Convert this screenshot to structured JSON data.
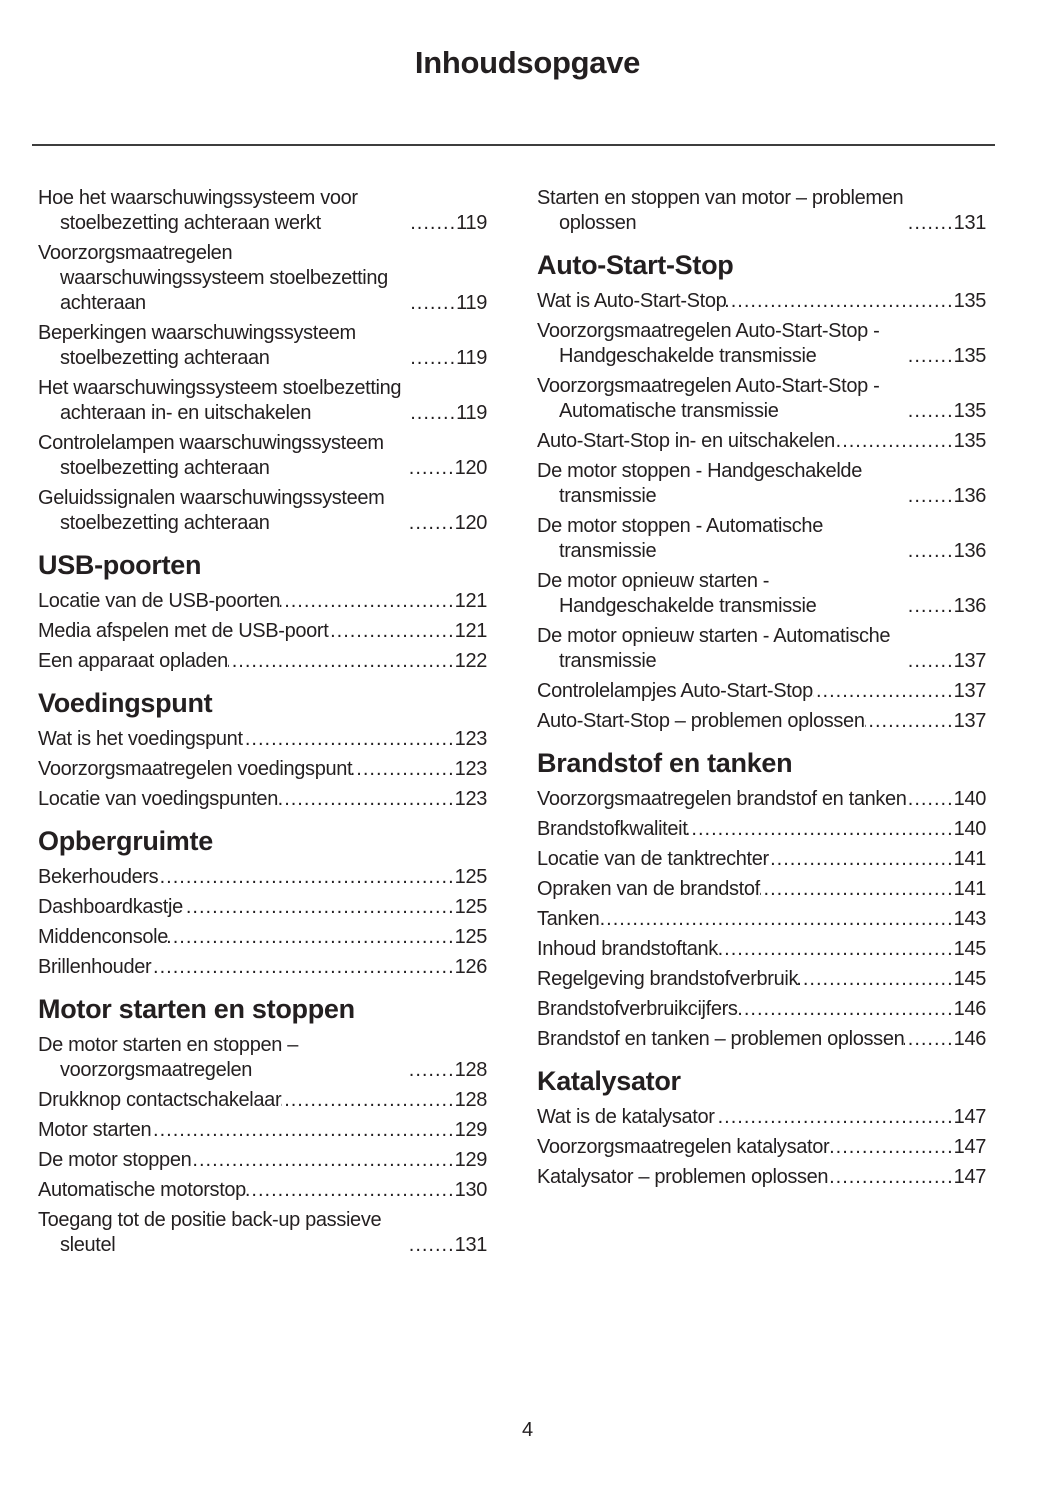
{
  "page": {
    "title": "Inhoudsopgave",
    "footer_page_number": "4"
  },
  "toc": {
    "columns": [
      {
        "sections": [
          {
            "heading": null,
            "entries": [
              {
                "label": "Hoe het waarschuwingssysteem voor stoelbezetting achteraan werkt",
                "page": "119"
              },
              {
                "label": "Voorzorgsmaatregelen waarschuwingssysteem stoelbezetting achteraan",
                "page": "119"
              },
              {
                "label": "Beperkingen waarschuwingssysteem stoelbezetting achteraan",
                "page": "119"
              },
              {
                "label": "Het waarschuwingssysteem stoelbezetting achteraan in- en uitschakelen",
                "page": "119"
              },
              {
                "label": "Controlelampen waarschuwingssysteem stoelbezetting achteraan",
                "page": "120"
              },
              {
                "label": "Geluidssignalen waarschuwingssysteem stoelbezetting achteraan",
                "page": "120"
              }
            ]
          },
          {
            "heading": "USB-poorten",
            "entries": [
              {
                "label": "Locatie van de USB-poorten",
                "page": "121"
              },
              {
                "label": "Media afspelen met de USB-poort",
                "page": "121"
              },
              {
                "label": "Een apparaat opladen",
                "page": "122"
              }
            ]
          },
          {
            "heading": "Voedingspunt",
            "entries": [
              {
                "label": "Wat is het voedingspunt",
                "page": "123"
              },
              {
                "label": "Voorzorgsmaatregelen voedingspunt",
                "page": "123"
              },
              {
                "label": "Locatie van voedingspunten",
                "page": "123"
              }
            ]
          },
          {
            "heading": "Opbergruimte",
            "entries": [
              {
                "label": "Bekerhouders",
                "page": "125"
              },
              {
                "label": "Dashboardkastje",
                "page": "125"
              },
              {
                "label": "Middenconsole",
                "page": "125"
              },
              {
                "label": "Brillenhouder",
                "page": "126"
              }
            ]
          },
          {
            "heading": "Motor starten en stoppen",
            "entries": [
              {
                "label": "De motor starten en stoppen – voorzorgsmaatregelen",
                "page": "128"
              },
              {
                "label": "Drukknop contactschakelaar",
                "page": "128"
              },
              {
                "label": "Motor starten",
                "page": "129"
              },
              {
                "label": "De motor stoppen",
                "page": "129"
              },
              {
                "label": "Automatische motorstop",
                "page": "130"
              },
              {
                "label": "Toegang tot de positie back-up passieve sleutel",
                "page": "131"
              }
            ]
          }
        ]
      },
      {
        "sections": [
          {
            "heading": null,
            "entries": [
              {
                "label": "Starten en stoppen van motor – problemen oplossen",
                "page": "131"
              }
            ]
          },
          {
            "heading": "Auto-Start-Stop",
            "entries": [
              {
                "label": "Wat is Auto-Start-Stop",
                "page": "135"
              },
              {
                "label": "Voorzorgsmaatregelen Auto-Start-Stop - Handgeschakelde transmissie",
                "page": "135"
              },
              {
                "label": "Voorzorgsmaatregelen Auto-Start-Stop - Automatische transmissie",
                "page": "135"
              },
              {
                "label": "Auto-Start-Stop in- en uitschakelen",
                "page": "135"
              },
              {
                "label": "De motor stoppen - Handgeschakelde transmissie",
                "page": "136"
              },
              {
                "label": "De motor stoppen - Automatische transmissie",
                "page": "136"
              },
              {
                "label": "De motor opnieuw starten - Handgeschakelde transmissie",
                "page": "136"
              },
              {
                "label": "De motor opnieuw starten - Automatische transmissie",
                "page": "137"
              },
              {
                "label": "Controlelampjes Auto-Start-Stop",
                "page": "137"
              },
              {
                "label": "Auto-Start-Stop – problemen oplossen",
                "page": "137"
              }
            ]
          },
          {
            "heading": "Brandstof en tanken",
            "entries": [
              {
                "label": "Voorzorgsmaatregelen brandstof en tanken",
                "page": "140"
              },
              {
                "label": "Brandstofkwaliteit",
                "page": "140"
              },
              {
                "label": "Locatie van de tanktrechter",
                "page": "141"
              },
              {
                "label": "Opraken van de brandstof",
                "page": "141"
              },
              {
                "label": "Tanken",
                "page": "143"
              },
              {
                "label": "Inhoud brandstoftank",
                "page": "145"
              },
              {
                "label": "Regelgeving brandstofverbruik",
                "page": "145"
              },
              {
                "label": "Brandstofverbruikcijfers",
                "page": "146"
              },
              {
                "label": "Brandstof en tanken – problemen oplossen",
                "page": "146"
              }
            ]
          },
          {
            "heading": "Katalysator",
            "entries": [
              {
                "label": "Wat is de katalysator",
                "page": "147"
              },
              {
                "label": "Voorzorgsmaatregelen katalysator",
                "page": "147"
              },
              {
                "label": "Katalysator – problemen oplossen",
                "page": "147"
              }
            ]
          }
        ]
      }
    ]
  }
}
